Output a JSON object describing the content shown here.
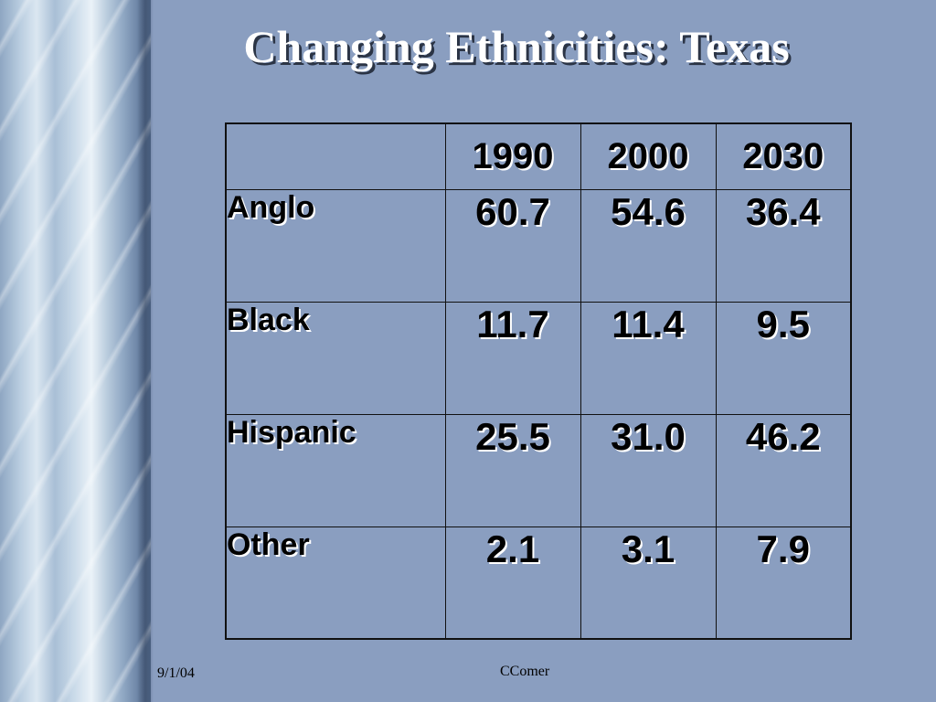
{
  "slide": {
    "title": "Changing Ethnicities:  Texas",
    "date": "9/1/04",
    "author": "CComer"
  },
  "table": {
    "header": [
      "",
      "1990",
      "2000",
      "2030"
    ],
    "rows": [
      {
        "label": "Anglo",
        "values": [
          "60.7",
          "54.6",
          "36.4"
        ]
      },
      {
        "label": "Black",
        "values": [
          "11.7",
          "11.4",
          "9.5"
        ]
      },
      {
        "label": "Hispanic",
        "values": [
          "25.5",
          "31.0",
          "46.2"
        ]
      },
      {
        "label": "Other",
        "values": [
          "2.1",
          "3.1",
          "7.9"
        ]
      }
    ]
  },
  "colors": {
    "background": "#8a9ec0",
    "title_text": "#ffffff",
    "table_text": "#000000"
  }
}
